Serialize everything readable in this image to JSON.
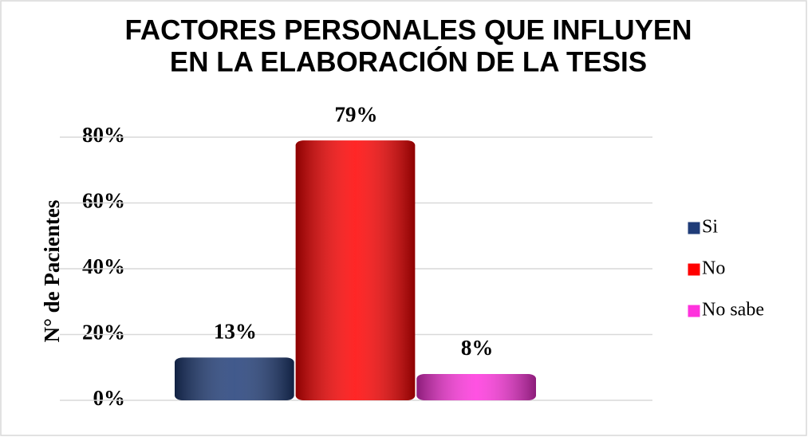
{
  "chart_data": {
    "type": "bar",
    "title": [
      "FACTORES PERSONALES QUE INFLUYEN",
      "EN LA ELABORACIÓN DE LA TESIS"
    ],
    "y_label": "N° de Pacientes",
    "categories": [
      null
    ],
    "series": [
      {
        "name": "Si",
        "color": "#1f3c78",
        "values": [
          13
        ],
        "value_labels": [
          "13%"
        ]
      },
      {
        "name": "No",
        "color": "#ff0000",
        "values": [
          79
        ],
        "value_labels": [
          "79%"
        ]
      },
      {
        "name": "No sabe",
        "color": "#ff33dd",
        "values": [
          8
        ],
        "value_labels": [
          "8%"
        ]
      }
    ],
    "ylim": [
      0,
      80
    ],
    "yticks": [
      {
        "value": 0,
        "label": "0%"
      },
      {
        "value": 20,
        "label": "20%"
      },
      {
        "value": 40,
        "label": "40%"
      },
      {
        "value": 60,
        "label": "60%"
      },
      {
        "value": 80,
        "label": "80%"
      }
    ],
    "grid": true,
    "legend": "right"
  }
}
